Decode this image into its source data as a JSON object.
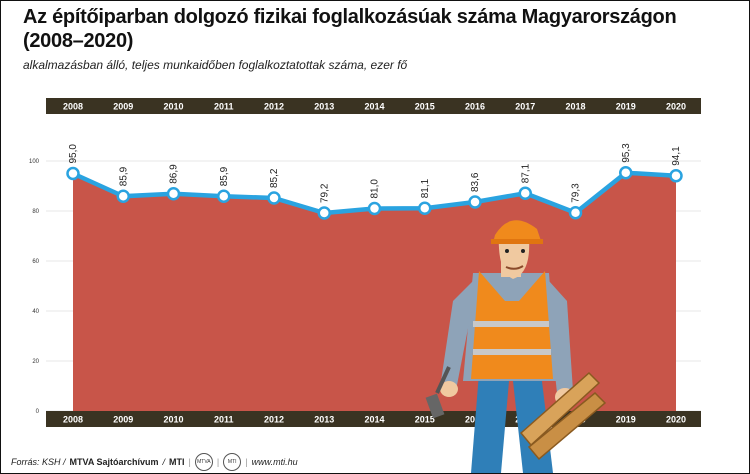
{
  "header": {
    "title": "Az építőiparban dolgozó fizikai foglalkozásúak száma Magyarországon (2008–2020)",
    "subtitle": "alkalmazásban álló, teljes munkaidőben foglalkoztatottak száma, ezer fő"
  },
  "footer": {
    "source_prefix": "Forrás: KSH / ",
    "archive": "MTVA Sajtóarchívum",
    "slash": " / ",
    "agency": "MTI",
    "logo1": "MTVA",
    "logo2": "MTI",
    "website": "www.mti.hu"
  },
  "colors": {
    "area": "#c85549",
    "line": "#2aa3e0",
    "band": "#3a3322",
    "band_text": "#ffffff",
    "grid": "#cfcfcf"
  },
  "illustration": {
    "icon": "construction-worker-illustration"
  },
  "chart_data": {
    "type": "area",
    "x": [
      "2008",
      "2009",
      "2010",
      "2011",
      "2012",
      "2013",
      "2014",
      "2015",
      "2016",
      "2017",
      "2018",
      "2019",
      "2020"
    ],
    "values": [
      95.0,
      85.9,
      86.9,
      85.9,
      85.2,
      79.2,
      81.0,
      81.1,
      83.6,
      87.1,
      79.3,
      95.3,
      94.1
    ],
    "value_labels": [
      "95,0",
      "85,9",
      "86,9",
      "85,9",
      "85,2",
      "79,2",
      "81,0",
      "81,1",
      "83,6",
      "87,1",
      "79,3",
      "95,3",
      "94,1"
    ],
    "yticks": [
      "0",
      "20",
      "40",
      "60",
      "80",
      "100"
    ],
    "ylim": [
      0,
      100
    ],
    "grid": true,
    "xlabel": "",
    "ylabel": ""
  }
}
